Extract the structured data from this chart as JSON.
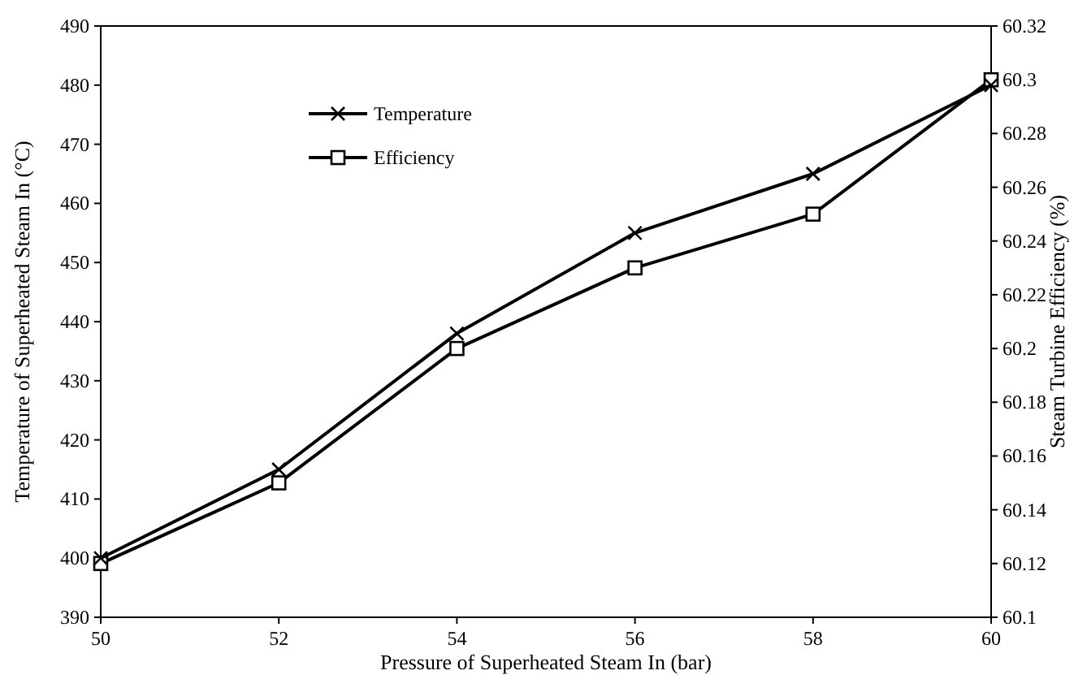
{
  "chart_data": {
    "type": "line",
    "xlabel": "Pressure of Superheated Steam In (bar)",
    "ylabel": "Temperature of Superheated Steam In (°C)",
    "y2label": "Steam Turbine Efficiency (%)",
    "x": [
      50,
      52,
      54,
      56,
      58,
      60
    ],
    "series": [
      {
        "name": "Temperature",
        "color": "#000000",
        "marker": "cross",
        "values": [
          400,
          415,
          438,
          455,
          465,
          480
        ]
      },
      {
        "name": "Efficiency",
        "color": "#000000",
        "marker": "square",
        "axis": "y2",
        "values": [
          60.12,
          60.15,
          60.2,
          60.23,
          60.25,
          60.3
        ]
      }
    ],
    "xlim": [
      50,
      60
    ],
    "xticks": [
      50,
      52,
      54,
      56,
      58,
      60
    ],
    "ylim": [
      390,
      490
    ],
    "yticks": [
      390,
      400,
      410,
      420,
      430,
      440,
      450,
      460,
      470,
      480,
      490
    ],
    "y2lim": [
      60.1,
      60.32
    ],
    "y2ticks": [
      60.1,
      60.12,
      60.14,
      60.16,
      60.18,
      60.2,
      60.22,
      60.24,
      60.26,
      60.28,
      60.3,
      60.32
    ],
    "grid": false,
    "legend": "top left",
    "line_style": "solid"
  }
}
